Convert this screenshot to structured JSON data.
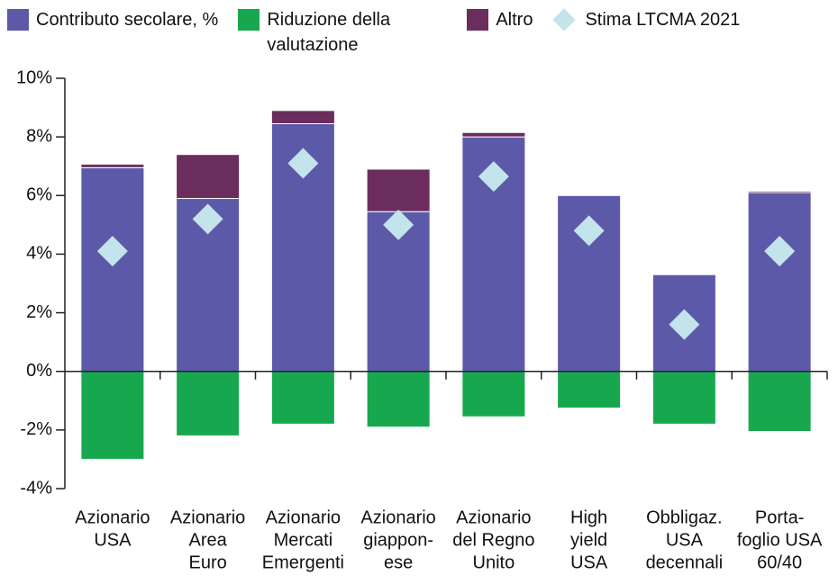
{
  "chart_data": {
    "type": "bar",
    "stacked": true,
    "categories": [
      [
        "Azionario",
        "USA"
      ],
      [
        "Azionario",
        "Area",
        "Euro"
      ],
      [
        "Azionario",
        "Mercati",
        "Emergenti"
      ],
      [
        "Azionario",
        "giappon-",
        "ese"
      ],
      [
        "Azionario",
        "del Regno",
        "Unito"
      ],
      [
        "High",
        "yield",
        "USA"
      ],
      [
        "Obbligaz.",
        "USA",
        "decennali"
      ],
      [
        "Porta-",
        "foglio USA",
        "60/40"
      ]
    ],
    "series": [
      {
        "name": "Contributo secolare, %",
        "color": "#5c5aa8",
        "values": [
          6.95,
          5.9,
          8.45,
          5.45,
          8.0,
          6.0,
          3.3,
          6.1
        ]
      },
      {
        "name": "Riduzione della valutazione",
        "color": "#17a84f",
        "values": [
          -3.0,
          -2.2,
          -1.8,
          -1.9,
          -1.55,
          -1.25,
          -1.8,
          -2.05
        ]
      },
      {
        "name": "Altro",
        "color": "#6b2c5e",
        "values": [
          0.12,
          1.5,
          0.45,
          1.45,
          0.15,
          0,
          0,
          0.05
        ]
      },
      {
        "name": "Stima LTCMA 2021",
        "color": "#c4e4ec",
        "type": "scatter",
        "values": [
          4.1,
          5.2,
          7.1,
          5.0,
          6.65,
          4.8,
          1.6,
          4.1
        ]
      }
    ],
    "ylim": [
      -4,
      10
    ],
    "yticks": [
      {
        "value": -4,
        "label": "-4%"
      },
      {
        "value": -2,
        "label": "-2%"
      },
      {
        "value": 0,
        "label": "0%"
      },
      {
        "value": 2,
        "label": "2%"
      },
      {
        "value": 4,
        "label": "4%"
      },
      {
        "value": 6,
        "label": "6%"
      },
      {
        "value": 8,
        "label": "8%"
      },
      {
        "value": 10,
        "label": "10%"
      }
    ],
    "grid": false
  }
}
